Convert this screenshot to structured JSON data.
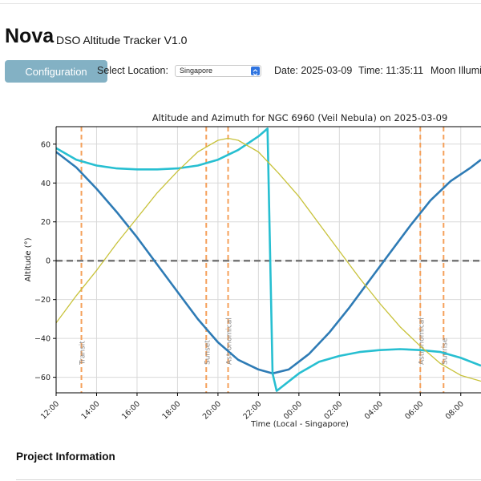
{
  "header": {
    "app_title": "Nova",
    "app_subtitle": "DSO Altitude Tracker V1.0"
  },
  "toolbar": {
    "config_button": "Configuration",
    "location_label": "Select Location:",
    "location_value": "Singapore",
    "date_text": "Date: 2025-03-09",
    "time_text": "Time: 11:35:11",
    "moon_text": "Moon Illumi"
  },
  "chart_data": {
    "type": "line",
    "title": "Altitude and Azimuth for NGC 6960 (Veil Nebula) on 2025-03-09",
    "xlabel": "Time (Local - Singapore)",
    "ylabel": "Altitude (°)",
    "xlim": [
      12.0,
      33.0
    ],
    "ylim": [
      -68,
      69
    ],
    "x_ticks": [
      "12:00",
      "14:00",
      "16:00",
      "18:00",
      "20:00",
      "22:00",
      "00:00",
      "02:00",
      "04:00",
      "06:00",
      "08:00"
    ],
    "y_ticks": [
      -60,
      -40,
      -20,
      0,
      20,
      40,
      60
    ],
    "grid": true,
    "horizon_line": 0,
    "series": [
      {
        "color": "#2e7bb5",
        "x": [
          12.0,
          13.0,
          14.0,
          15.0,
          16.0,
          17.0,
          18.0,
          19.0,
          20.0,
          21.0,
          22.0,
          22.7,
          23.5,
          24.5,
          25.5,
          26.5,
          27.5,
          28.5,
          29.5,
          30.5,
          31.5,
          32.5,
          33.0
        ],
        "values": [
          56,
          48,
          37,
          25,
          12,
          -2,
          -16,
          -30,
          -42,
          -51,
          -56,
          -58,
          -56,
          -48,
          -37,
          -24,
          -10,
          4,
          18,
          31,
          41,
          48,
          52
        ]
      },
      {
        "color": "#27bfd1",
        "x": [
          12.0,
          13.0,
          14.0,
          15.0,
          16.0,
          17.0,
          18.0,
          19.0,
          20.0,
          21.0,
          22.0,
          22.45,
          22.7,
          22.9,
          24.0,
          25.0,
          26.0,
          27.0,
          28.0,
          29.0,
          30.0,
          31.0,
          32.0,
          33.0
        ],
        "values": [
          58,
          52,
          49,
          47.5,
          47,
          47,
          47.5,
          49,
          52,
          57,
          64,
          68,
          -58,
          -67,
          -58,
          -52,
          -49,
          -47,
          -46,
          -45.5,
          -46,
          -47,
          -50,
          -54
        ]
      },
      {
        "color": "#c8c23a",
        "x": [
          12.0,
          13.0,
          14.0,
          15.0,
          16.0,
          17.0,
          18.0,
          19.0,
          20.0,
          20.5,
          21.0,
          22.0,
          23.0,
          24.0,
          25.0,
          26.0,
          27.0,
          28.0,
          29.0,
          30.0,
          31.0,
          32.0,
          33.0
        ],
        "values": [
          -32,
          -18,
          -5,
          9,
          22,
          35,
          46,
          56,
          62,
          63,
          62,
          56,
          45,
          33,
          19,
          5,
          -9,
          -22,
          -34,
          -44,
          -53,
          -59,
          -62
        ]
      }
    ],
    "events": [
      {
        "label": "Transit",
        "x": 13.25
      },
      {
        "label": "Sunset",
        "x": 19.42
      },
      {
        "label": "Astronomical",
        "x": 20.5
      },
      {
        "label": "Astronomical",
        "x": 30.0
      },
      {
        "label": "Sunrise",
        "x": 31.15
      }
    ]
  },
  "project": {
    "title": "Project Information"
  }
}
